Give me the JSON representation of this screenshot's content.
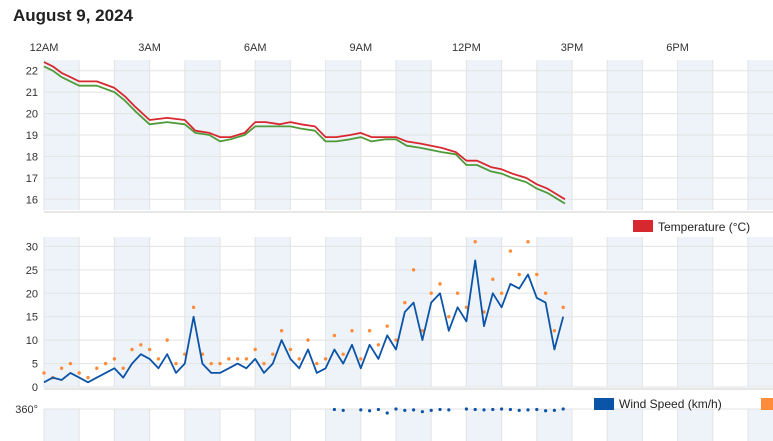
{
  "header": {
    "date": "August 9, 2024"
  },
  "time_axis": {
    "labels": [
      "12AM",
      "3AM",
      "6AM",
      "9AM",
      "12PM",
      "3PM",
      "6PM"
    ]
  },
  "legend": {
    "temperature": "Temperature (°C)",
    "wind": "Wind Speed (km/h)"
  },
  "colors": {
    "temperature": "#d7282f",
    "dewpoint": "#4f9a3a",
    "wind_speed": "#0b54a8",
    "wind_gust": "#ff8c3a",
    "band": "#eef3f9",
    "grid": "#e3e3e3"
  },
  "chart_data": [
    {
      "type": "line",
      "x_unit": "hour of day",
      "xlim": [
        0,
        20.5
      ],
      "ylim": [
        15.5,
        22.5
      ],
      "yticks": [
        16,
        17,
        18,
        19,
        20,
        21,
        22
      ],
      "grid": true,
      "legend_position": "bottom-right",
      "series": [
        {
          "name": "Temperature (°C)",
          "x": [
            0,
            0.25,
            0.5,
            0.75,
            1,
            1.5,
            2,
            2.3,
            2.6,
            3,
            3.5,
            4,
            4.3,
            4.7,
            5,
            5.3,
            5.7,
            6,
            6.3,
            6.7,
            7,
            7.3,
            7.7,
            8,
            8.3,
            8.7,
            9,
            9.3,
            9.7,
            10,
            10.3,
            10.7,
            11,
            11.3,
            11.7,
            12,
            12.3,
            12.7,
            13,
            13.3,
            13.7,
            14,
            14.3,
            14.6,
            14.8
          ],
          "y": [
            22.4,
            22.2,
            21.9,
            21.7,
            21.5,
            21.5,
            21.2,
            20.8,
            20.3,
            19.7,
            19.8,
            19.7,
            19.2,
            19.1,
            18.9,
            18.9,
            19.1,
            19.6,
            19.6,
            19.5,
            19.6,
            19.5,
            19.4,
            18.9,
            18.9,
            19.0,
            19.1,
            18.9,
            18.9,
            18.9,
            18.7,
            18.6,
            18.5,
            18.4,
            18.2,
            17.8,
            17.8,
            17.5,
            17.4,
            17.2,
            17.0,
            16.7,
            16.5,
            16.2,
            16.0
          ]
        },
        {
          "name": "",
          "x": [
            0,
            0.25,
            0.5,
            0.75,
            1,
            1.5,
            2,
            2.3,
            2.6,
            3,
            3.5,
            4,
            4.3,
            4.7,
            5,
            5.3,
            5.7,
            6,
            6.3,
            6.7,
            7,
            7.3,
            7.7,
            8,
            8.3,
            8.7,
            9,
            9.3,
            9.7,
            10,
            10.3,
            10.7,
            11,
            11.3,
            11.7,
            12,
            12.3,
            12.7,
            13,
            13.3,
            13.7,
            14,
            14.3,
            14.6,
            14.8
          ],
          "y": [
            22.2,
            22.0,
            21.7,
            21.5,
            21.3,
            21.3,
            21.0,
            20.6,
            20.1,
            19.5,
            19.6,
            19.5,
            19.1,
            19.0,
            18.7,
            18.8,
            19.0,
            19.4,
            19.4,
            19.4,
            19.4,
            19.3,
            19.2,
            18.7,
            18.7,
            18.8,
            18.9,
            18.7,
            18.8,
            18.8,
            18.5,
            18.4,
            18.3,
            18.2,
            18.1,
            17.6,
            17.6,
            17.3,
            17.2,
            17.0,
            16.8,
            16.5,
            16.3,
            16.0,
            15.8
          ]
        }
      ]
    },
    {
      "type": "line",
      "x_unit": "hour of day",
      "xlim": [
        0,
        20.5
      ],
      "ylim": [
        0,
        32
      ],
      "yticks": [
        0,
        5,
        10,
        15,
        20,
        25,
        30
      ],
      "grid": true,
      "legend_position": "bottom-right",
      "series": [
        {
          "name": "Wind Speed (km/h)",
          "x": [
            0,
            0.25,
            0.5,
            0.75,
            1,
            1.25,
            1.5,
            1.75,
            2,
            2.25,
            2.5,
            2.75,
            3,
            3.25,
            3.5,
            3.75,
            4,
            4.25,
            4.5,
            4.75,
            5,
            5.25,
            5.5,
            5.75,
            6,
            6.25,
            6.5,
            6.75,
            7,
            7.25,
            7.5,
            7.75,
            8,
            8.25,
            8.5,
            8.75,
            9,
            9.25,
            9.5,
            9.75,
            10,
            10.25,
            10.5,
            10.75,
            11,
            11.25,
            11.5,
            11.75,
            12,
            12.25,
            12.5,
            12.75,
            13,
            13.25,
            13.5,
            13.75,
            14,
            14.25,
            14.5,
            14.75
          ],
          "y": [
            1,
            2,
            1.5,
            3,
            2,
            1,
            2,
            3,
            4,
            2,
            5,
            7,
            6,
            4,
            7,
            3,
            5,
            15,
            5,
            3,
            3,
            4,
            5,
            4,
            6,
            3,
            5,
            10,
            6,
            4,
            8,
            3,
            4,
            8,
            5,
            9,
            4,
            9,
            6,
            11,
            8,
            16,
            18,
            10,
            18,
            20,
            12,
            17,
            14,
            27,
            13,
            20,
            17,
            22,
            21,
            24,
            19,
            18,
            8,
            15
          ]
        },
        {
          "name": "",
          "x": [
            0,
            0.25,
            0.5,
            0.75,
            1,
            1.25,
            1.5,
            1.75,
            2,
            2.25,
            2.5,
            2.75,
            3,
            3.25,
            3.5,
            3.75,
            4,
            4.25,
            4.5,
            4.75,
            5,
            5.25,
            5.5,
            5.75,
            6,
            6.25,
            6.5,
            6.75,
            7,
            7.25,
            7.5,
            7.75,
            8,
            8.25,
            8.5,
            8.75,
            9,
            9.25,
            9.5,
            9.75,
            10,
            10.25,
            10.5,
            10.75,
            11,
            11.25,
            11.5,
            11.75,
            12,
            12.25,
            12.5,
            12.75,
            13,
            13.25,
            13.5,
            13.75,
            14,
            14.25,
            14.5,
            14.75
          ],
          "y": [
            3,
            2,
            4,
            5,
            3,
            2,
            4,
            5,
            6,
            4,
            8,
            9,
            8,
            6,
            10,
            5,
            7,
            17,
            7,
            5,
            5,
            6,
            6,
            6,
            8,
            5,
            7,
            12,
            8,
            6,
            10,
            5,
            6,
            11,
            7,
            12,
            6,
            12,
            9,
            13,
            10,
            18,
            25,
            12,
            20,
            22,
            15,
            20,
            17,
            31,
            16,
            23,
            20,
            29,
            24,
            31,
            24,
            20,
            12,
            17
          ]
        }
      ]
    },
    {
      "type": "scatter",
      "x_unit": "hour of day",
      "xlim": [
        0,
        20.5
      ],
      "ylim": [
        0,
        360
      ],
      "yticks": [
        360
      ],
      "series": [
        {
          "name": "",
          "x": [
            8.25,
            8.5,
            9,
            9.25,
            9.5,
            9.75,
            10,
            10.25,
            10.5,
            10.75,
            11,
            11.25,
            11.5,
            12,
            12.25,
            12.5,
            12.75,
            13,
            13.25,
            13.5,
            13.75,
            14,
            14.25,
            14.5,
            14.75
          ],
          "y": [
            355,
            345,
            350,
            340,
            355,
            315,
            360,
            345,
            350,
            330,
            345,
            355,
            350,
            360,
            355,
            350,
            355,
            360,
            355,
            345,
            350,
            355,
            340,
            345,
            360
          ]
        }
      ]
    }
  ]
}
